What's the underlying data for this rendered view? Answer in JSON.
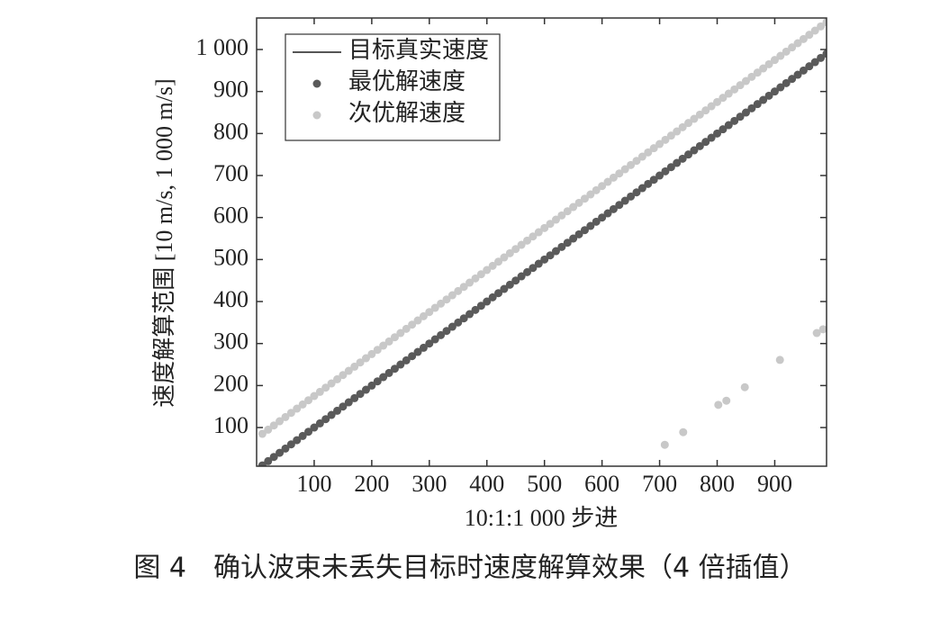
{
  "chart_data": {
    "type": "scatter",
    "caption": "图 4　确认波束未丢失目标时速度解算效果（4 倍插值）",
    "x_label": "10:1:1 000 步进",
    "y_label": "速度解算范围 [10 m/s, 1 000 m/s]",
    "xlim": [
      0,
      990
    ],
    "ylim": [
      8,
      1075
    ],
    "xticks": [
      100,
      200,
      300,
      400,
      500,
      600,
      700,
      800,
      900
    ],
    "yticks": [
      100,
      200,
      300,
      400,
      500,
      600,
      700,
      800,
      900,
      {
        "value": 1000,
        "label": "1 000"
      }
    ],
    "legend": "upper left",
    "series": [
      {
        "name": "目标真实速度",
        "kind": "line",
        "color": "#555555",
        "x": [
          10,
          1000
        ],
        "values": [
          10,
          1000
        ]
      },
      {
        "name": "最优解速度",
        "kind": "dots",
        "color": "#5a5a5a",
        "x": [
          10,
          20,
          30,
          40,
          50,
          60,
          70,
          80,
          90,
          100,
          110,
          120,
          130,
          140,
          150,
          160,
          170,
          180,
          190,
          200,
          210,
          220,
          230,
          240,
          250,
          260,
          270,
          280,
          290,
          300,
          310,
          320,
          330,
          340,
          350,
          360,
          370,
          380,
          390,
          400,
          410,
          420,
          430,
          440,
          450,
          460,
          470,
          480,
          490,
          500,
          510,
          520,
          530,
          540,
          550,
          560,
          570,
          580,
          590,
          600,
          610,
          620,
          630,
          640,
          650,
          660,
          670,
          680,
          690,
          700,
          710,
          720,
          730,
          740,
          750,
          760,
          770,
          780,
          790,
          800,
          810,
          820,
          830,
          840,
          850,
          860,
          870,
          880,
          890,
          900,
          910,
          920,
          930,
          940,
          950,
          960,
          970,
          980,
          990,
          1000
        ],
        "values": [
          10,
          20,
          30,
          40,
          50,
          60,
          70,
          80,
          90,
          100,
          110,
          120,
          130,
          140,
          150,
          160,
          170,
          180,
          190,
          200,
          210,
          220,
          230,
          240,
          250,
          260,
          270,
          280,
          290,
          300,
          310,
          320,
          330,
          340,
          350,
          360,
          370,
          380,
          390,
          400,
          410,
          420,
          430,
          440,
          450,
          460,
          470,
          480,
          490,
          500,
          510,
          520,
          530,
          540,
          550,
          560,
          570,
          580,
          590,
          600,
          610,
          620,
          630,
          640,
          650,
          660,
          670,
          680,
          690,
          700,
          710,
          720,
          730,
          740,
          750,
          760,
          770,
          780,
          790,
          800,
          810,
          820,
          830,
          840,
          850,
          860,
          870,
          880,
          890,
          900,
          910,
          920,
          930,
          940,
          950,
          960,
          970,
          980,
          990,
          1000
        ]
      },
      {
        "name": "次优解速度",
        "kind": "dots",
        "color": "#c8c8c8",
        "x": [
          10,
          20,
          30,
          40,
          50,
          60,
          70,
          80,
          90,
          100,
          110,
          120,
          130,
          140,
          150,
          160,
          170,
          180,
          190,
          200,
          210,
          220,
          230,
          240,
          250,
          260,
          270,
          280,
          290,
          300,
          310,
          320,
          330,
          340,
          350,
          360,
          370,
          380,
          390,
          400,
          410,
          420,
          430,
          440,
          450,
          460,
          470,
          480,
          490,
          500,
          510,
          520,
          530,
          540,
          550,
          560,
          570,
          580,
          590,
          600,
          610,
          620,
          630,
          640,
          650,
          660,
          670,
          680,
          690,
          700,
          710,
          720,
          730,
          740,
          750,
          760,
          770,
          780,
          790,
          800,
          810,
          820,
          830,
          840,
          850,
          860,
          870,
          880,
          890,
          900,
          910,
          920,
          930,
          940,
          950,
          960,
          970,
          980,
          990,
          1000,
          709,
          741,
          802,
          816,
          848,
          909,
          973,
          984
        ],
        "values": [
          85,
          95,
          105,
          115,
          125,
          135,
          145,
          155,
          165,
          175,
          185,
          195,
          205,
          215,
          225,
          235,
          245,
          255,
          265,
          275,
          285,
          295,
          305,
          315,
          325,
          335,
          345,
          355,
          365,
          375,
          385,
          395,
          405,
          415,
          425,
          435,
          445,
          455,
          465,
          475,
          485,
          495,
          505,
          515,
          525,
          535,
          545,
          555,
          565,
          575,
          585,
          595,
          605,
          615,
          625,
          635,
          645,
          655,
          665,
          675,
          685,
          695,
          705,
          715,
          725,
          735,
          745,
          755,
          765,
          775,
          785,
          795,
          805,
          815,
          825,
          835,
          845,
          855,
          865,
          875,
          885,
          895,
          905,
          915,
          925,
          935,
          945,
          955,
          965,
          975,
          985,
          995,
          1005,
          1015,
          1025,
          1035,
          1045,
          1055,
          1065,
          1075,
          59,
          89,
          154,
          164,
          196,
          261,
          325,
          334
        ]
      }
    ]
  }
}
